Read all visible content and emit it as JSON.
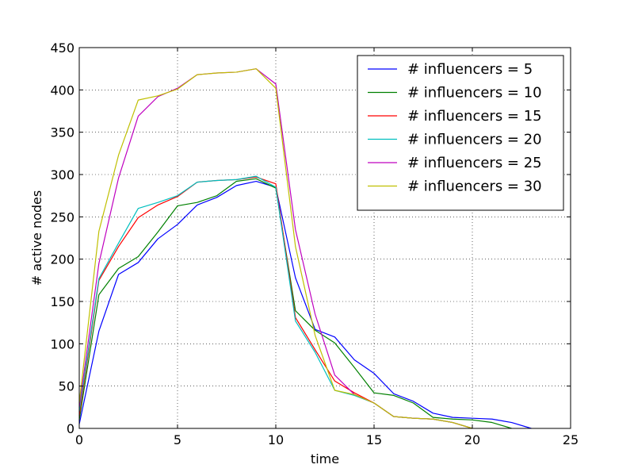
{
  "chart_data": {
    "type": "line",
    "title": "",
    "xlabel": "time",
    "ylabel": "# active nodes",
    "xlim": [
      0,
      25
    ],
    "ylim": [
      0,
      450
    ],
    "xticks": [
      0,
      5,
      10,
      15,
      20,
      25
    ],
    "yticks": [
      0,
      50,
      100,
      150,
      200,
      250,
      300,
      350,
      400,
      450
    ],
    "grid": true,
    "legend_position": "top-right",
    "series": [
      {
        "name": "# influencers = 5",
        "color": "#0000ff",
        "x": [
          0,
          1,
          2,
          3,
          4,
          5,
          6,
          7,
          8,
          9,
          10,
          11,
          12,
          13,
          14,
          15,
          16,
          17,
          18,
          19,
          20,
          21,
          22,
          23
        ],
        "y": [
          5,
          115,
          182,
          196,
          224,
          241,
          264,
          273,
          287,
          292,
          285,
          178,
          117,
          108,
          81,
          65,
          41,
          32,
          18,
          13,
          12,
          11,
          7,
          0
        ]
      },
      {
        "name": "# influencers = 10",
        "color": "#008000",
        "x": [
          0,
          1,
          2,
          3,
          4,
          5,
          6,
          7,
          8,
          9,
          10,
          11,
          12,
          13,
          14,
          15,
          16,
          17,
          18,
          19,
          20,
          21,
          22
        ],
        "y": [
          10,
          158,
          189,
          203,
          232,
          263,
          267,
          275,
          292,
          295,
          284,
          139,
          116,
          101,
          72,
          42,
          39,
          30,
          13,
          11,
          10,
          7,
          0
        ]
      },
      {
        "name": "# influencers = 15",
        "color": "#ff0000",
        "x": [
          0,
          1,
          2,
          3,
          4,
          5,
          6,
          7,
          8,
          9,
          10,
          11,
          12,
          13,
          14,
          15,
          16,
          17,
          18,
          19,
          20
        ],
        "y": [
          15,
          175,
          215,
          249,
          264,
          274,
          291,
          293,
          294,
          297,
          289,
          131,
          93,
          56,
          42,
          30,
          14,
          12,
          11,
          7,
          0
        ]
      },
      {
        "name": "# influencers = 20",
        "color": "#00bfbf",
        "x": [
          0,
          1,
          2,
          3,
          4,
          5,
          6,
          7,
          8,
          9,
          10,
          11,
          12,
          13,
          14,
          15,
          16,
          17,
          18,
          19,
          20
        ],
        "y": [
          20,
          177,
          219,
          260,
          267,
          275,
          291,
          293,
          294,
          298,
          285,
          127,
          90,
          45,
          39,
          30,
          14,
          12,
          11,
          7,
          0
        ]
      },
      {
        "name": "# influencers = 25",
        "color": "#bf00bf",
        "x": [
          0,
          1,
          2,
          3,
          4,
          5,
          6,
          7,
          8,
          9,
          10,
          11,
          12,
          13,
          14,
          15,
          16,
          17,
          18,
          19,
          20
        ],
        "y": [
          25,
          195,
          296,
          369,
          392,
          402,
          418,
          420,
          421,
          425,
          407,
          235,
          135,
          63,
          40,
          30,
          14,
          12,
          11,
          7,
          0
        ]
      },
      {
        "name": "# influencers = 30",
        "color": "#bfbf00",
        "x": [
          0,
          1,
          2,
          3,
          4,
          5,
          6,
          7,
          8,
          9,
          10,
          11,
          12,
          13,
          14,
          15,
          16,
          17,
          18,
          19,
          20
        ],
        "y": [
          30,
          233,
          323,
          388,
          393,
          401,
          418,
          420,
          421,
          425,
          402,
          215,
          110,
          45,
          40,
          30,
          14,
          12,
          11,
          7,
          0
        ]
      }
    ]
  }
}
